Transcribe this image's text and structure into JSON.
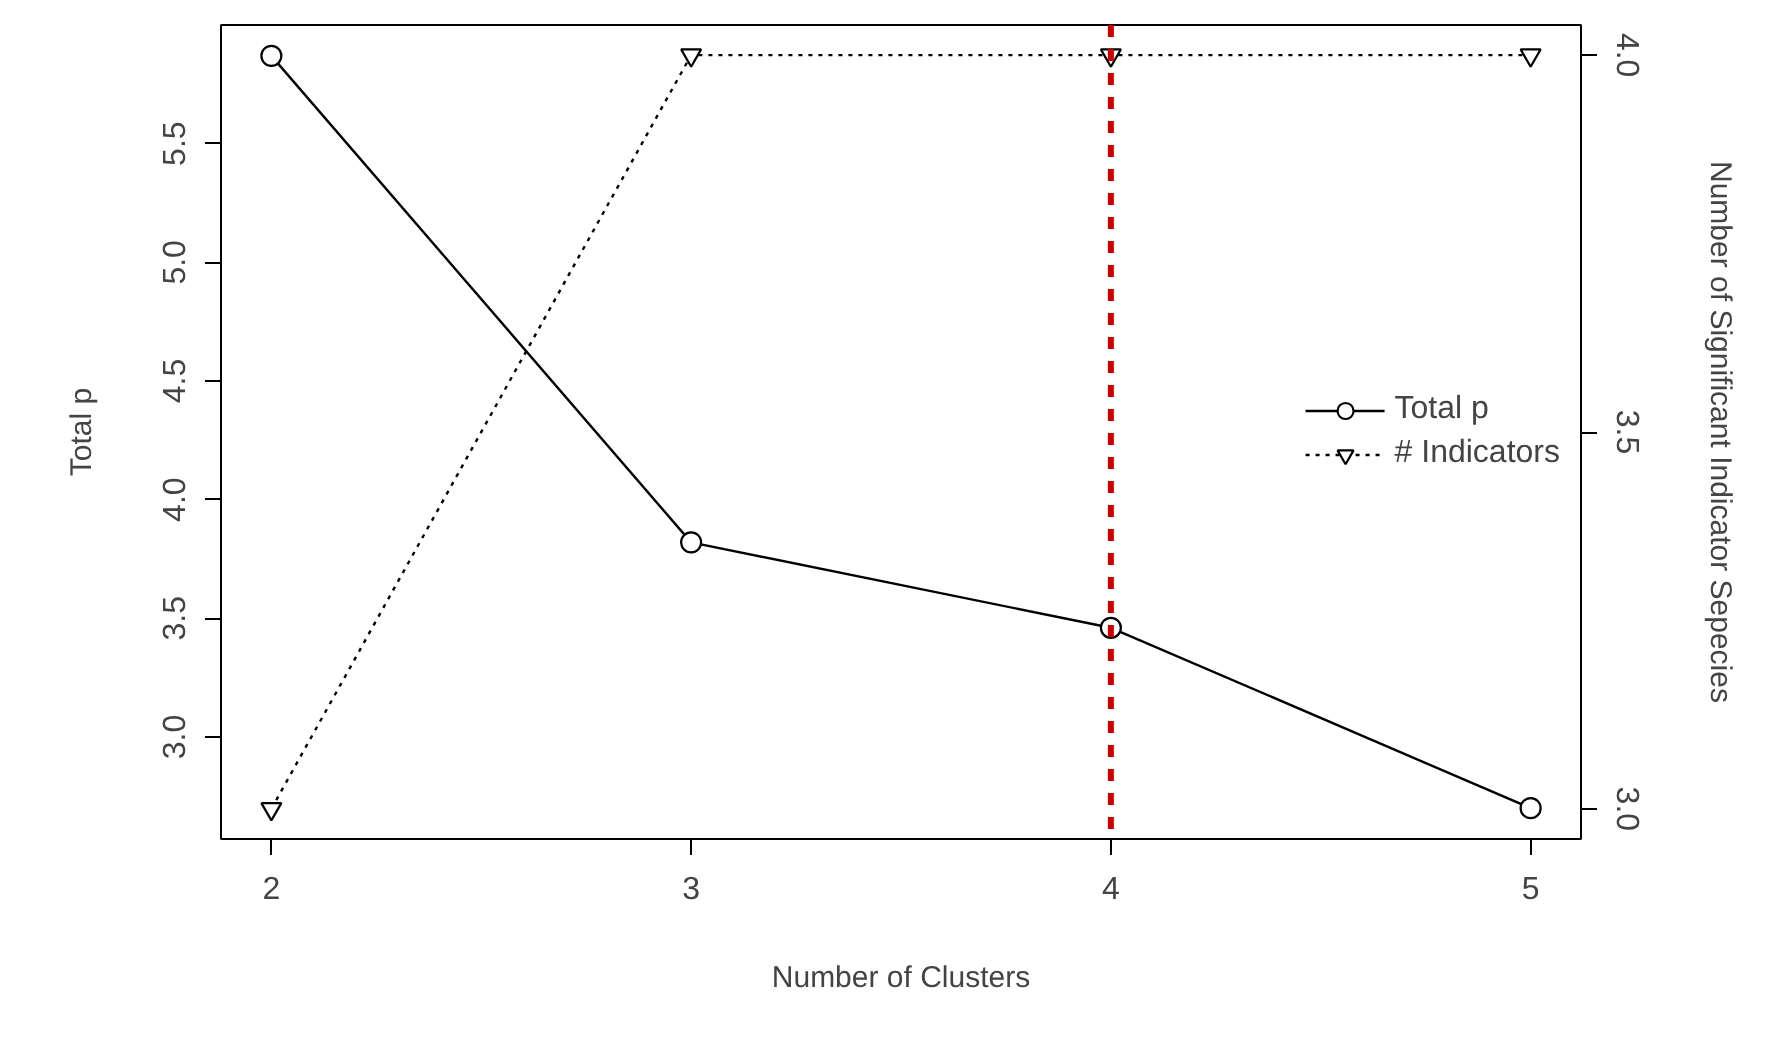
{
  "chart_data": {
    "type": "line",
    "xlabel": "Number of Clusters",
    "ylabel": "Total p",
    "y2label": "Number of Significant Indicator Sepecies",
    "x": [
      2,
      3,
      4,
      5
    ],
    "series": [
      {
        "name": "Total p",
        "color": "#000000",
        "values": [
          5.87,
          3.82,
          3.46,
          2.7
        ],
        "marker": "circle",
        "line_style": "solid"
      },
      {
        "name": "# Indicators",
        "color": "#000000",
        "values": [
          3,
          4,
          4,
          4
        ],
        "marker": "triangle",
        "line_style": "dotted",
        "axis": "y2"
      }
    ],
    "xlim": [
      1.88,
      5.12
    ],
    "xticks": [
      2,
      3,
      4,
      5
    ],
    "ylim": [
      2.57,
      6.0
    ],
    "yticks": [
      {
        "value": 3,
        "label": "3.0"
      },
      3.5,
      {
        "value": 4,
        "label": "4.0"
      },
      4.5,
      {
        "value": 5,
        "label": "5.0"
      },
      5.5
    ],
    "y2lim": [
      2.96,
      4.04
    ],
    "y2ticks": [
      {
        "value": 3,
        "label": "3.0"
      },
      3.5,
      {
        "value": 4,
        "label": "4.0"
      }
    ],
    "ref_lines": [
      {
        "axis": "x",
        "value": 4,
        "color": "#cc0000",
        "line_style": "dashed"
      }
    ],
    "grid": false,
    "legend": "right"
  }
}
